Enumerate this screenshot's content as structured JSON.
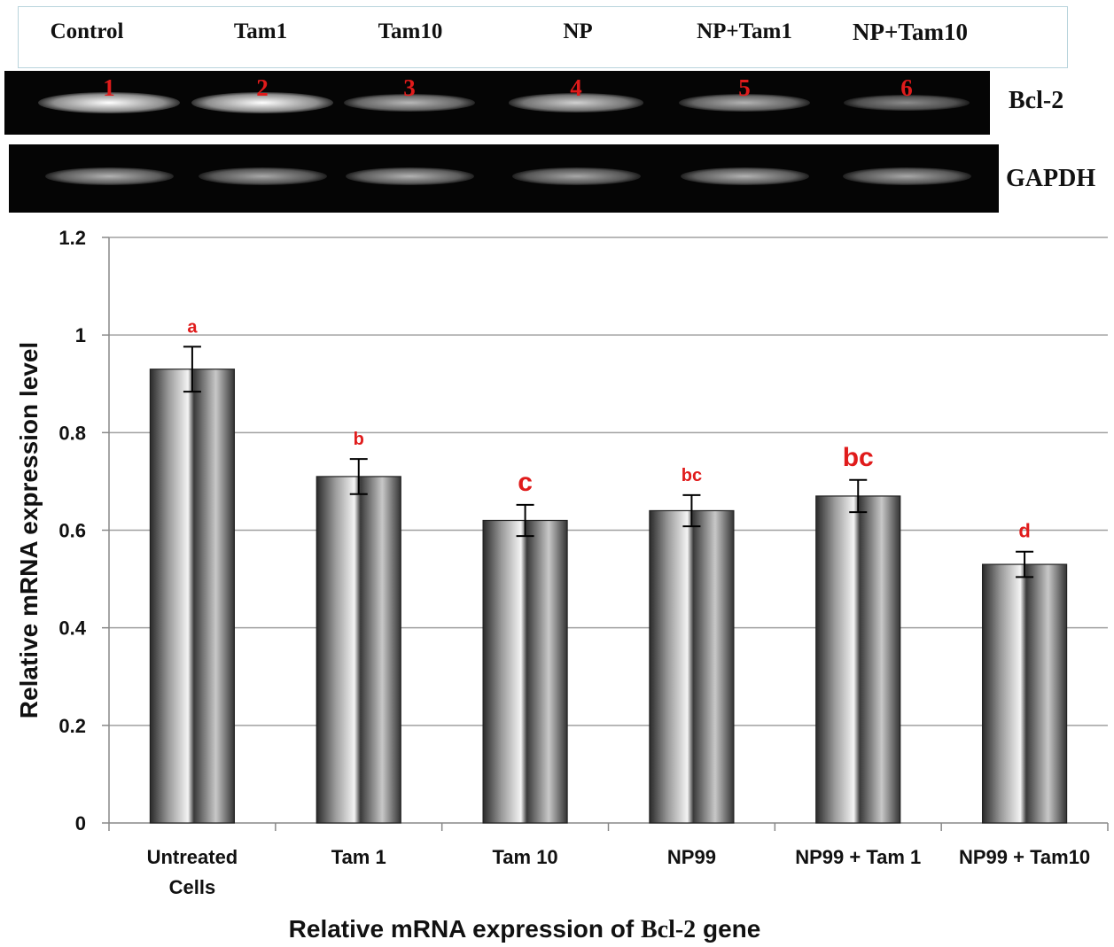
{
  "gel": {
    "lane_labels": [
      "Control",
      "Tam1",
      "Tam10",
      "NP",
      "NP+Tam1",
      "NP+Tam10"
    ],
    "lane_numbers": [
      "1",
      "2",
      "3",
      "4",
      "5",
      "6"
    ],
    "bcl2_label": "Bcl-2",
    "gapdh_label": "GAPDH",
    "bcl2_band_intensity": [
      1.0,
      1.0,
      0.72,
      0.82,
      0.7,
      0.55
    ],
    "gapdh_band_intensity": [
      0.7,
      0.66,
      0.7,
      0.66,
      0.7,
      0.66
    ]
  },
  "colors": {
    "letter_color": "#e01b1b",
    "gel_background": "#050505",
    "header_border": "#b8d4dc"
  },
  "chart_data": {
    "type": "bar",
    "categories": [
      [
        "Untreated",
        "Cells"
      ],
      [
        "Tam 1"
      ],
      [
        "Tam 10"
      ],
      [
        "NP99"
      ],
      [
        "NP99 + Tam 1"
      ],
      [
        "NP99 + Tam10"
      ]
    ],
    "values": [
      0.93,
      0.71,
      0.62,
      0.64,
      0.67,
      0.53
    ],
    "errors": [
      0.046,
      0.036,
      0.032,
      0.032,
      0.033,
      0.026
    ],
    "significance_letters": [
      "a",
      "b",
      "c",
      "bc",
      "bc",
      "d"
    ],
    "xlabel_parts": [
      "Relative mRNA expression of ",
      "Bcl-2",
      " gene"
    ],
    "ylabel": "Relative mRNA expression level",
    "ylim": [
      0,
      1.2
    ],
    "yticks": [
      0,
      0.2,
      0.4,
      0.6,
      0.8,
      1,
      1.2
    ],
    "ytick_labels": [
      "0",
      "0.2",
      "0.4",
      "0.6",
      "0.8",
      "1",
      "1.2"
    ],
    "grid": true,
    "legend": "none"
  }
}
